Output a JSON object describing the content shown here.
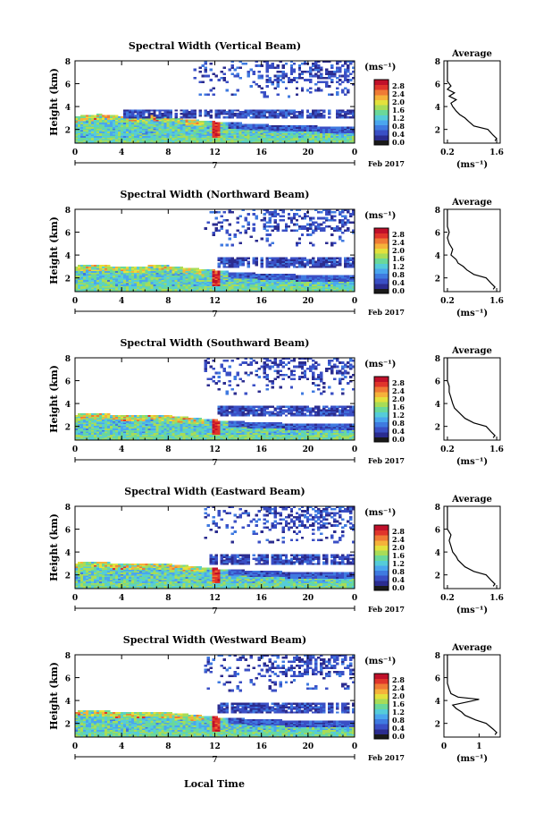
{
  "xlabel_bottom": "Local Time",
  "colorbar": {
    "unit": "(ms⁻¹)",
    "ticks": [
      "0.0",
      "0.4",
      "0.8",
      "1.2",
      "1.6",
      "2.0",
      "2.4",
      "2.8"
    ],
    "range": [
      0,
      3.0
    ],
    "colors": [
      "#1a1a1a",
      "#2b2c8f",
      "#3a4fc5",
      "#3f7ae0",
      "#4aa6ee",
      "#55ccd9",
      "#6ad89a",
      "#a8dc57",
      "#e3e13c",
      "#f5b23a",
      "#ef7b35",
      "#e0352b",
      "#c0102a"
    ]
  },
  "chart_data": [
    {
      "type": "heatmap",
      "title": "Spectral Width (Vertical Beam)",
      "ylabel": "Height (km)",
      "yticks": [
        "2",
        "4",
        "6",
        "8"
      ],
      "ylim": [
        0.8,
        8
      ],
      "xticks": [
        "0",
        "4",
        "8",
        "12",
        "16",
        "20",
        "0"
      ],
      "xlim": [
        0,
        24
      ],
      "date_label": "7",
      "date_text": "Feb 2017",
      "boundary_layer_top_km": [
        3.1,
        3.2,
        3.3,
        3.2,
        3.1,
        3.0,
        3.1,
        3.2,
        3.0,
        2.9,
        2.8,
        2.7,
        2.6,
        2.5,
        2.5,
        2.4,
        2.4,
        2.3,
        2.3,
        2.3,
        2.3,
        2.2,
        2.2,
        2.2,
        2.2
      ],
      "cloud_layer_km": [
        3.0,
        3.7
      ],
      "avg_profile": {
        "title": "Average",
        "xlabel": "(ms⁻¹)",
        "xticks": [
          "0.2",
          "1.6"
        ],
        "xlim": [
          0.1,
          1.7
        ],
        "yticks": [
          "2",
          "4",
          "6",
          "8"
        ],
        "heights": [
          1.0,
          1.2,
          1.5,
          2.0,
          2.3,
          2.7,
          3.0,
          3.3,
          3.6,
          4.0,
          4.3,
          4.6,
          4.9,
          5.2,
          5.5,
          5.8,
          6.2,
          6.6,
          7.0,
          7.5,
          8.0
        ],
        "values": [
          1.55,
          1.6,
          1.5,
          1.35,
          0.95,
          0.8,
          0.7,
          0.55,
          0.45,
          0.35,
          0.3,
          0.45,
          0.25,
          0.4,
          0.2,
          0.3,
          0.2,
          0.2,
          0.2,
          0.2,
          0.2
        ]
      }
    },
    {
      "type": "heatmap",
      "title": "Spectral Width (Northward Beam)",
      "ylabel": "Height (km)",
      "yticks": [
        "2",
        "4",
        "6",
        "8"
      ],
      "ylim": [
        0.8,
        8
      ],
      "xticks": [
        "0",
        "4",
        "8",
        "12",
        "16",
        "20",
        "0"
      ],
      "xlim": [
        0,
        24
      ],
      "date_label": "7",
      "date_text": "Feb 2017",
      "boundary_layer_top_km": [
        3.0,
        3.1,
        3.1,
        3.0,
        3.0,
        2.9,
        3.0,
        3.1,
        3.0,
        2.9,
        2.8,
        2.7,
        2.6,
        2.5,
        2.4,
        2.4,
        2.3,
        2.3,
        2.3,
        2.2,
        2.2,
        2.2,
        2.2,
        2.2,
        2.2
      ],
      "cloud_layer_km": [
        2.9,
        3.7
      ],
      "avg_profile": {
        "title": "Average",
        "xlabel": "(ms⁻¹)",
        "xticks": [
          "0.2",
          "1.6"
        ],
        "xlim": [
          0.1,
          1.7
        ],
        "yticks": [
          "2",
          "4",
          "6",
          "8"
        ],
        "heights": [
          1.0,
          1.2,
          1.5,
          2.0,
          2.3,
          2.7,
          3.0,
          3.3,
          3.6,
          4.0,
          4.5,
          5.0,
          5.5,
          6.0,
          6.5,
          7.0,
          7.5,
          8.0
        ],
        "values": [
          1.5,
          1.55,
          1.45,
          1.3,
          0.95,
          0.75,
          0.65,
          0.5,
          0.45,
          0.3,
          0.35,
          0.25,
          0.2,
          0.25,
          0.2,
          0.2,
          0.2,
          0.2
        ]
      }
    },
    {
      "type": "heatmap",
      "title": "Spectral Width (Southward Beam)",
      "ylabel": "Height (km)",
      "yticks": [
        "2",
        "4",
        "6",
        "8"
      ],
      "ylim": [
        0.8,
        8
      ],
      "xticks": [
        "0",
        "4",
        "8",
        "12",
        "16",
        "20",
        "0"
      ],
      "xlim": [
        0,
        24
      ],
      "date_label": "7",
      "date_text": "Feb 2017",
      "boundary_layer_top_km": [
        3.0,
        3.1,
        3.1,
        3.0,
        2.9,
        2.9,
        3.0,
        3.0,
        2.9,
        2.8,
        2.7,
        2.6,
        2.5,
        2.4,
        2.4,
        2.3,
        2.3,
        2.3,
        2.2,
        2.2,
        2.2,
        2.2,
        2.2,
        2.2,
        2.2
      ],
      "cloud_layer_km": [
        2.9,
        3.7
      ],
      "avg_profile": {
        "title": "Average",
        "xlabel": "(ms⁻¹)",
        "xticks": [
          "0.2",
          "1.6"
        ],
        "xlim": [
          0.1,
          1.7
        ],
        "yticks": [
          "2",
          "4",
          "6",
          "8"
        ],
        "heights": [
          1.0,
          1.2,
          1.5,
          2.0,
          2.3,
          2.7,
          3.0,
          3.3,
          3.6,
          4.0,
          4.5,
          5.0,
          5.5,
          6.0,
          6.5,
          7.0,
          7.5,
          8.0
        ],
        "values": [
          1.5,
          1.55,
          1.45,
          1.3,
          0.95,
          0.7,
          0.6,
          0.5,
          0.4,
          0.35,
          0.3,
          0.25,
          0.25,
          0.2,
          0.2,
          0.2,
          0.2,
          0.2
        ]
      }
    },
    {
      "type": "heatmap",
      "title": "Spectral Width (Eastward Beam)",
      "ylabel": "Height (km)",
      "yticks": [
        "2",
        "4",
        "6",
        "8"
      ],
      "ylim": [
        0.8,
        8
      ],
      "xticks": [
        "0",
        "4",
        "8",
        "12",
        "16",
        "20",
        "0"
      ],
      "xlim": [
        0,
        24
      ],
      "date_label": "7",
      "date_text": "Feb 2017",
      "boundary_layer_top_km": [
        3.0,
        3.1,
        3.1,
        3.0,
        2.9,
        2.9,
        3.0,
        3.0,
        2.9,
        2.8,
        2.7,
        2.6,
        2.5,
        2.4,
        2.4,
        2.3,
        2.3,
        2.3,
        2.2,
        2.2,
        2.2,
        2.2,
        2.2,
        2.2,
        2.2
      ],
      "cloud_layer_km": [
        2.9,
        3.7
      ],
      "avg_profile": {
        "title": "Average",
        "xlabel": "(ms⁻¹)",
        "xticks": [
          "0.2",
          "1.6"
        ],
        "xlim": [
          0.1,
          1.7
        ],
        "yticks": [
          "2",
          "4",
          "6",
          "8"
        ],
        "heights": [
          1.0,
          1.2,
          1.5,
          2.0,
          2.3,
          2.7,
          3.0,
          3.3,
          3.6,
          4.0,
          4.5,
          5.0,
          5.5,
          6.0,
          6.5,
          7.0,
          7.5,
          8.0
        ],
        "values": [
          1.5,
          1.55,
          1.45,
          1.3,
          0.95,
          0.7,
          0.6,
          0.5,
          0.45,
          0.35,
          0.3,
          0.25,
          0.3,
          0.2,
          0.2,
          0.2,
          0.2,
          0.2
        ]
      }
    },
    {
      "type": "heatmap",
      "title": "Spectral Width (Westward Beam)",
      "ylabel": "Height (km)",
      "yticks": [
        "2",
        "4",
        "6",
        "8"
      ],
      "ylim": [
        0.8,
        8
      ],
      "xticks": [
        "0",
        "4",
        "8",
        "12",
        "16",
        "20",
        "0"
      ],
      "xlim": [
        0,
        24
      ],
      "date_label": "7",
      "date_text": "Feb 2017",
      "boundary_layer_top_km": [
        3.0,
        3.1,
        3.1,
        3.0,
        2.9,
        2.9,
        3.0,
        3.0,
        2.9,
        2.8,
        2.7,
        2.6,
        2.5,
        2.4,
        2.4,
        2.3,
        2.3,
        2.3,
        2.2,
        2.2,
        2.2,
        2.2,
        2.2,
        2.2,
        2.2
      ],
      "cloud_layer_km": [
        2.9,
        3.7
      ],
      "avg_profile": {
        "title": "Average",
        "xlabel": "(ms⁻¹)",
        "xticks": [
          "0",
          "1"
        ],
        "xlim": [
          0,
          1.6
        ],
        "yticks": [
          "2",
          "4",
          "6",
          "8"
        ],
        "heights": [
          1.0,
          1.2,
          1.5,
          2.0,
          2.3,
          2.7,
          3.0,
          3.3,
          3.6,
          3.9,
          4.1,
          4.3,
          4.6,
          5.0,
          5.5,
          6.0,
          6.5,
          7.0,
          7.5,
          8.0
        ],
        "values": [
          1.45,
          1.5,
          1.4,
          1.2,
          0.9,
          0.6,
          0.5,
          0.35,
          0.25,
          0.7,
          1.0,
          0.4,
          0.2,
          0.15,
          0.1,
          0.1,
          0.1,
          0.1,
          0.1,
          0.1
        ]
      }
    }
  ]
}
